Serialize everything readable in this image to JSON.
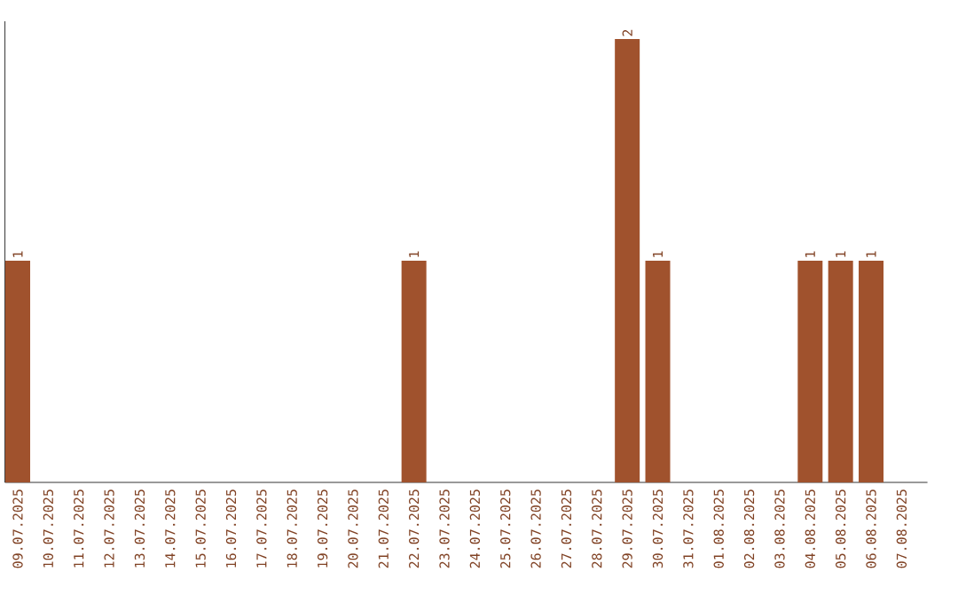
{
  "chart_data": {
    "type": "bar",
    "categories": [
      "09.07.2025",
      "10.07.2025",
      "11.07.2025",
      "12.07.2025",
      "13.07.2025",
      "14.07.2025",
      "15.07.2025",
      "16.07.2025",
      "17.07.2025",
      "18.07.2025",
      "19.07.2025",
      "20.07.2025",
      "21.07.2025",
      "22.07.2025",
      "23.07.2025",
      "24.07.2025",
      "25.07.2025",
      "26.07.2025",
      "27.07.2025",
      "28.07.2025",
      "29.07.2025",
      "30.07.2025",
      "31.07.2025",
      "01.08.2025",
      "02.08.2025",
      "03.08.2025",
      "04.08.2025",
      "05.08.2025",
      "06.08.2025",
      "07.08.2025"
    ],
    "values": [
      1,
      0,
      0,
      0,
      0,
      0,
      0,
      0,
      0,
      0,
      0,
      0,
      0,
      1,
      0,
      0,
      0,
      0,
      0,
      0,
      2,
      1,
      0,
      0,
      0,
      0,
      1,
      1,
      1,
      0
    ],
    "color": "#a0522d",
    "value_labels": [
      "1",
      null,
      null,
      null,
      null,
      null,
      null,
      null,
      null,
      null,
      null,
      null,
      null,
      "1",
      null,
      null,
      null,
      null,
      null,
      null,
      "2",
      "1",
      null,
      null,
      null,
      null,
      "1",
      "1",
      "1",
      null
    ]
  }
}
